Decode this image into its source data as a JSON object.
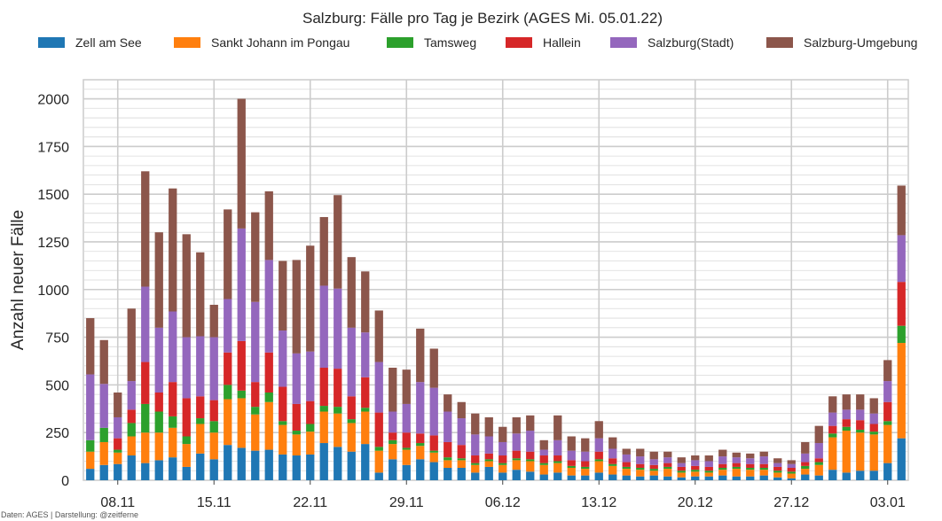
{
  "chart_data": {
    "type": "bar",
    "stacked": true,
    "title": "Salzburg: Fälle pro Tag je Bezirk (AGES Mi. 05.01.22)",
    "xlabel": "",
    "ylabel": "Anzahl neuer Fälle",
    "ylim": [
      0,
      2100
    ],
    "y_ticks": [
      "0",
      "250",
      "500",
      "750",
      "1000",
      "1250",
      "1500",
      "1750",
      "2000"
    ],
    "x_ticks": [
      {
        "label": "08.11",
        "index": 2
      },
      {
        "label": "15.11",
        "index": 9
      },
      {
        "label": "22.11",
        "index": 16
      },
      {
        "label": "29.11",
        "index": 23
      },
      {
        "label": "06.12",
        "index": 30
      },
      {
        "label": "13.12",
        "index": 37
      },
      {
        "label": "20.12",
        "index": 44
      },
      {
        "label": "27.12",
        "index": 51
      },
      {
        "label": "03.01",
        "index": 58
      }
    ],
    "grid": true,
    "legend_position": "top",
    "source_note": "Daten: AGES | Darstellung: @zeitferne",
    "series": [
      {
        "name": "Zell am See",
        "color": "#1f77b4",
        "values": [
          60,
          80,
          85,
          130,
          90,
          105,
          120,
          70,
          140,
          110,
          185,
          170,
          155,
          160,
          135,
          130,
          135,
          195,
          175,
          150,
          190,
          40,
          110,
          80,
          110,
          95,
          65,
          65,
          40,
          70,
          40,
          55,
          45,
          30,
          40,
          25,
          25,
          40,
          30,
          25,
          20,
          25,
          20,
          15,
          20,
          20,
          25,
          20,
          20,
          25,
          15,
          10,
          30,
          25,
          55,
          40,
          50,
          50,
          90,
          220
        ]
      },
      {
        "name": "Sankt Johann im Pongau",
        "color": "#ff7f0e",
        "values": [
          90,
          120,
          60,
          100,
          160,
          145,
          155,
          120,
          155,
          140,
          240,
          260,
          190,
          250,
          155,
          110,
          120,
          165,
          175,
          150,
          170,
          115,
          80,
          80,
          70,
          50,
          40,
          40,
          40,
          30,
          40,
          50,
          55,
          50,
          50,
          40,
          35,
          60,
          45,
          35,
          35,
          25,
          40,
          25,
          25,
          20,
          30,
          40,
          35,
          30,
          25,
          25,
          30,
          55,
          170,
          220,
          200,
          190,
          200,
          500
        ]
      },
      {
        "name": "Tamsweg",
        "color": "#2ca02c",
        "values": [
          60,
          75,
          15,
          70,
          150,
          110,
          60,
          40,
          30,
          60,
          75,
          40,
          40,
          50,
          20,
          20,
          40,
          30,
          35,
          20,
          20,
          20,
          20,
          10,
          15,
          10,
          15,
          10,
          10,
          10,
          10,
          10,
          10,
          10,
          10,
          10,
          10,
          10,
          10,
          10,
          10,
          10,
          10,
          10,
          10,
          10,
          10,
          10,
          10,
          10,
          10,
          10,
          15,
          15,
          20,
          20,
          15,
          15,
          20,
          90
        ]
      },
      {
        "name": "Hallein",
        "color": "#d62728",
        "values": [
          0,
          0,
          60,
          70,
          220,
          100,
          180,
          200,
          115,
          110,
          170,
          260,
          130,
          210,
          180,
          140,
          120,
          200,
          200,
          120,
          160,
          180,
          40,
          80,
          50,
          80,
          80,
          70,
          40,
          30,
          40,
          40,
          40,
          40,
          30,
          30,
          30,
          40,
          30,
          25,
          20,
          20,
          20,
          20,
          20,
          20,
          20,
          20,
          20,
          20,
          20,
          20,
          20,
          20,
          40,
          40,
          50,
          40,
          100,
          230
        ]
      },
      {
        "name": "Salzburg(Stadt)",
        "color": "#9467bd",
        "values": [
          345,
          230,
          110,
          150,
          395,
          340,
          370,
          320,
          315,
          330,
          280,
          590,
          420,
          485,
          295,
          265,
          260,
          430,
          420,
          360,
          235,
          265,
          110,
          150,
          270,
          250,
          160,
          140,
          110,
          90,
          70,
          90,
          110,
          30,
          80,
          50,
          50,
          70,
          50,
          40,
          40,
          30,
          30,
          20,
          30,
          30,
          40,
          30,
          30,
          40,
          20,
          20,
          45,
          80,
          70,
          50,
          55,
          55,
          110,
          245
        ]
      },
      {
        "name": "Salzburg-Umgebung",
        "color": "#8c564b",
        "values": [
          295,
          230,
          130,
          380,
          605,
          500,
          645,
          540,
          440,
          170,
          470,
          680,
          470,
          360,
          365,
          490,
          555,
          360,
          490,
          370,
          320,
          270,
          230,
          180,
          280,
          205,
          90,
          85,
          110,
          100,
          80,
          85,
          80,
          50,
          130,
          75,
          70,
          90,
          60,
          30,
          40,
          40,
          30,
          30,
          25,
          30,
          35,
          25,
          25,
          25,
          25,
          20,
          60,
          90,
          85,
          80,
          80,
          80,
          110,
          260
        ]
      }
    ]
  }
}
